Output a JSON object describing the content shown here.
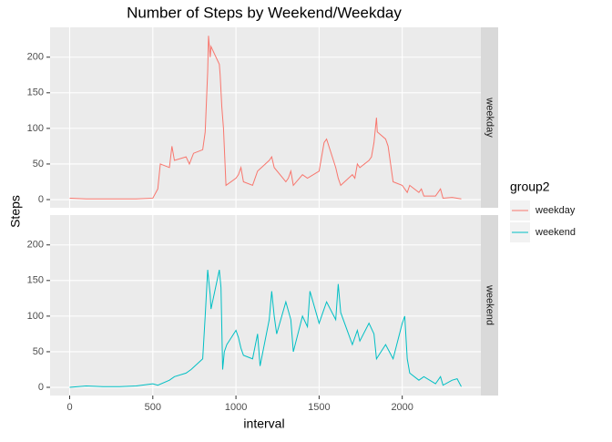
{
  "chart_data": {
    "type": "line",
    "title": "Number of Steps by Weekend/Weekday",
    "x_label": "interval",
    "y_label": "Steps",
    "legend_title": "group2",
    "facets": true,
    "grid": true,
    "xlim": [
      -117.75,
      2472.75
    ],
    "xticks": [
      0,
      500,
      1000,
      1500,
      2000
    ],
    "ylim": [
      -11.5,
      241.9
    ],
    "yticks": [
      0,
      50,
      100,
      150,
      200
    ],
    "series": [
      {
        "name": "weekday",
        "color": "#F8766D",
        "x": [
          0,
          100,
          200,
          300,
          400,
          500,
          530,
          545,
          600,
          615,
          630,
          700,
          720,
          745,
          800,
          815,
          830,
          835,
          845,
          850,
          900,
          905,
          915,
          925,
          940,
          1000,
          1015,
          1030,
          1045,
          1100,
          1115,
          1130,
          1200,
          1215,
          1230,
          1300,
          1315,
          1330,
          1345,
          1400,
          1430,
          1500,
          1530,
          1545,
          1600,
          1615,
          1630,
          1700,
          1715,
          1730,
          1745,
          1800,
          1815,
          1830,
          1845,
          1850,
          1900,
          1915,
          1930,
          1945,
          2000,
          2030,
          2045,
          2100,
          2115,
          2130,
          2200,
          2230,
          2245,
          2300,
          2355
        ],
        "values": [
          2,
          1,
          1,
          1,
          1,
          2,
          15,
          50,
          45,
          75,
          55,
          60,
          50,
          65,
          70,
          95,
          180,
          230,
          200,
          215,
          190,
          175,
          130,
          100,
          20,
          30,
          35,
          45,
          25,
          20,
          30,
          40,
          55,
          60,
          45,
          25,
          30,
          40,
          20,
          35,
          30,
          40,
          80,
          85,
          45,
          30,
          20,
          35,
          30,
          50,
          45,
          55,
          60,
          80,
          115,
          95,
          85,
          75,
          50,
          25,
          20,
          10,
          20,
          10,
          15,
          5,
          5,
          15,
          2,
          3,
          1
        ]
      },
      {
        "name": "weekend",
        "color": "#00BFC4",
        "x": [
          0,
          100,
          200,
          300,
          400,
          500,
          530,
          600,
          630,
          700,
          730,
          800,
          815,
          830,
          845,
          850,
          900,
          910,
          920,
          930,
          945,
          1000,
          1015,
          1030,
          1045,
          1100,
          1130,
          1145,
          1200,
          1215,
          1230,
          1245,
          1300,
          1330,
          1345,
          1400,
          1430,
          1445,
          1500,
          1530,
          1545,
          1600,
          1615,
          1630,
          1700,
          1730,
          1745,
          1800,
          1830,
          1845,
          1900,
          1945,
          2000,
          2015,
          2030,
          2045,
          2100,
          2130,
          2200,
          2230,
          2245,
          2300,
          2330,
          2355
        ],
        "values": [
          0,
          2,
          1,
          1,
          2,
          5,
          3,
          10,
          15,
          20,
          25,
          40,
          100,
          165,
          130,
          110,
          165,
          140,
          25,
          50,
          60,
          80,
          70,
          55,
          45,
          40,
          75,
          30,
          95,
          135,
          100,
          75,
          120,
          95,
          50,
          100,
          85,
          135,
          90,
          110,
          120,
          95,
          145,
          105,
          60,
          80,
          65,
          90,
          75,
          40,
          60,
          40,
          90,
          100,
          40,
          20,
          10,
          15,
          5,
          15,
          3,
          10,
          12,
          1
        ]
      }
    ]
  }
}
